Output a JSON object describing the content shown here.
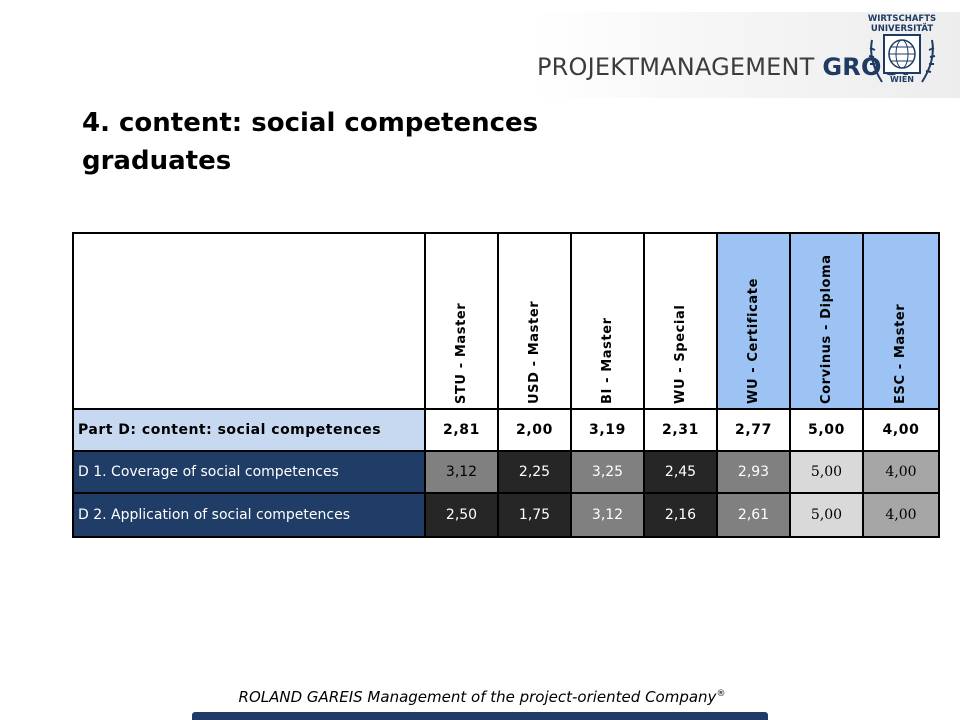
{
  "header": {
    "brand_prefix": "PROJEKTMANAGEMENT ",
    "brand_group": "GROUP",
    "seal_top": "WIRTSCHAFTS",
    "seal_mid": "UNIVERSITÄT",
    "seal_bottom": "WIEN"
  },
  "title": {
    "line1": "4. content: social competences",
    "line2": "graduates"
  },
  "table": {
    "columns": [
      {
        "label": "STU - Master",
        "highlight": false
      },
      {
        "label": "USD - Master",
        "highlight": false
      },
      {
        "label": "BI - Master",
        "highlight": false
      },
      {
        "label": "WU - Special",
        "highlight": false
      },
      {
        "label": "WU - Certificate",
        "highlight": true
      },
      {
        "label": "Corvinus - Diploma",
        "highlight": true
      },
      {
        "label": "ESC - Master",
        "highlight": true
      }
    ],
    "rows": [
      {
        "label": "Part D: content: social competences",
        "kind": "part",
        "values": [
          "2,81",
          "2,00",
          "3,19",
          "2,31",
          "2,77",
          "5,00",
          "4,00"
        ],
        "fills": [
          "#ffffff",
          "#ffffff",
          "#ffffff",
          "#ffffff",
          "#ffffff",
          "#ffffff",
          "#ffffff"
        ],
        "text_colors": [
          "#000000",
          "#000000",
          "#000000",
          "#000000",
          "#000000",
          "#000000",
          "#000000"
        ]
      },
      {
        "label": "D 1. Coverage of social competences",
        "kind": "item",
        "values": [
          "3,12",
          "2,25",
          "3,25",
          "2,45",
          "2,93",
          "5,00",
          "4,00"
        ],
        "fills": [
          "#808080",
          "#262626",
          "#808080",
          "#262626",
          "#808080",
          "#d9d9d9",
          "#a6a6a6"
        ],
        "text_colors": [
          "#000000",
          "#ffffff",
          "#ffffff",
          "#ffffff",
          "#ffffff",
          "#000000",
          "#000000"
        ]
      },
      {
        "label": "D 2. Application of social competences",
        "kind": "item",
        "values": [
          "2,50",
          "1,75",
          "3,12",
          "2,16",
          "2,61",
          "5,00",
          "4,00"
        ],
        "fills": [
          "#262626",
          "#262626",
          "#808080",
          "#262626",
          "#808080",
          "#d9d9d9",
          "#a6a6a6"
        ],
        "text_colors": [
          "#ffffff",
          "#ffffff",
          "#ffffff",
          "#ffffff",
          "#ffffff",
          "#000000",
          "#000000"
        ]
      }
    ],
    "highlight_color": "#9dc3f5"
  },
  "footer": {
    "text": "ROLAND GAREIS Management of the project-oriented Company",
    "mark": "®"
  }
}
